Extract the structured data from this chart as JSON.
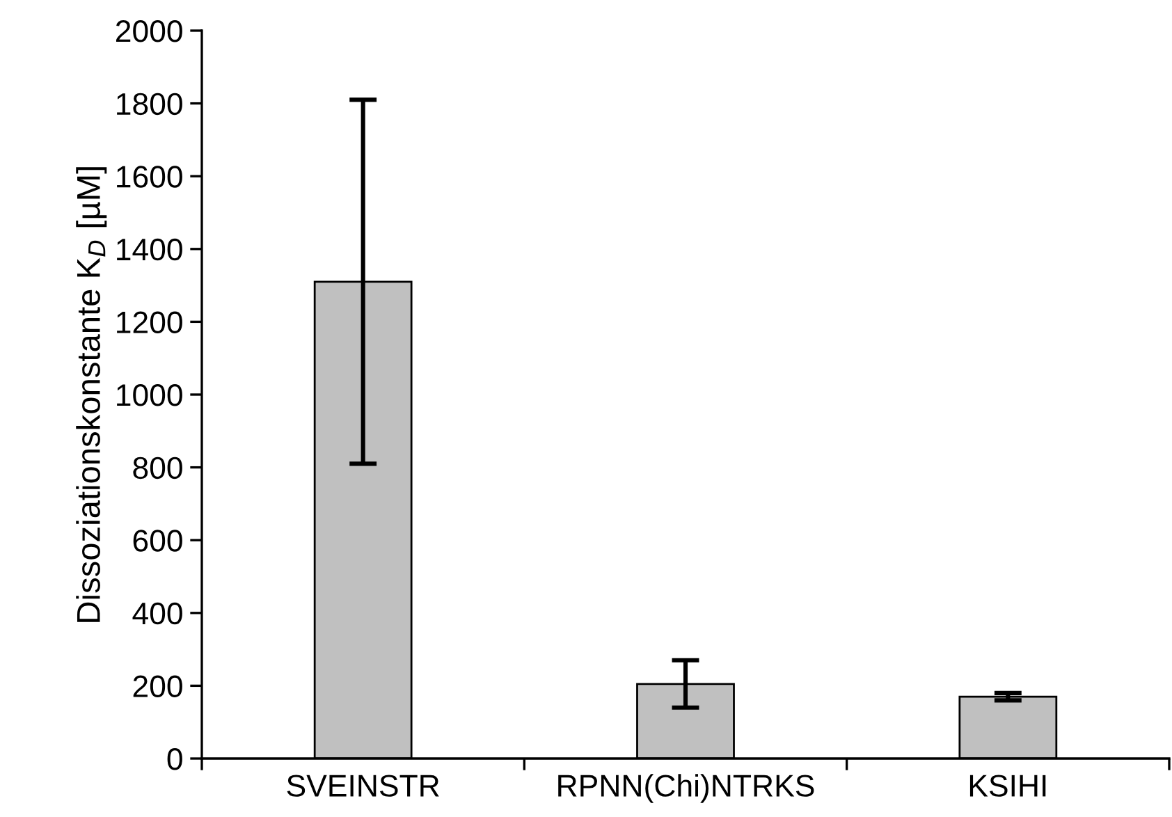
{
  "chart_data": {
    "type": "bar",
    "ylabel": "Dissoziationskonstante K$_{D}$ [µM]",
    "categories": [
      "SVEINSTR",
      "RPNN(Chi)NTRKS",
      "KSIHI"
    ],
    "values": [
      1310,
      205,
      170
    ],
    "errors": [
      500,
      65,
      10
    ],
    "color": "#c0c0c0",
    "ylim": [
      0,
      2000
    ],
    "yticks": [
      0,
      200,
      400,
      600,
      800,
      1000,
      1200,
      1400,
      1600,
      1800,
      2000
    ],
    "grid": false,
    "legend": false
  }
}
